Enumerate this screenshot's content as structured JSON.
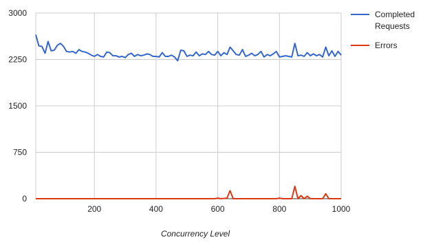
{
  "chart_data": {
    "type": "line",
    "title": "",
    "xlabel": "Concurrency Level",
    "ylabel": "",
    "xlim": [
      10,
      1000
    ],
    "ylim": [
      0,
      3000
    ],
    "x_ticks": [
      200,
      400,
      600,
      800,
      1000
    ],
    "y_ticks": [
      0,
      750,
      1500,
      2250,
      3000
    ],
    "grid": true,
    "legend_position": "right",
    "x": [
      10,
      20,
      30,
      40,
      50,
      60,
      70,
      80,
      90,
      100,
      110,
      120,
      130,
      140,
      150,
      160,
      170,
      180,
      190,
      200,
      210,
      220,
      230,
      240,
      250,
      260,
      270,
      280,
      290,
      300,
      310,
      320,
      330,
      340,
      350,
      360,
      370,
      380,
      390,
      400,
      410,
      420,
      430,
      440,
      450,
      460,
      470,
      480,
      490,
      500,
      510,
      520,
      530,
      540,
      550,
      560,
      570,
      580,
      590,
      600,
      610,
      620,
      630,
      640,
      650,
      660,
      670,
      680,
      690,
      700,
      710,
      720,
      730,
      740,
      750,
      760,
      770,
      780,
      790,
      800,
      810,
      820,
      830,
      840,
      850,
      860,
      870,
      880,
      890,
      900,
      910,
      920,
      930,
      940,
      950,
      960,
      970,
      980,
      990,
      1000
    ],
    "series": [
      {
        "name": "Completed Requests",
        "color": "#3366cc",
        "values": [
          2650,
          2470,
          2460,
          2350,
          2540,
          2390,
          2400,
          2480,
          2510,
          2460,
          2380,
          2370,
          2380,
          2350,
          2410,
          2380,
          2370,
          2350,
          2320,
          2300,
          2330,
          2300,
          2290,
          2370,
          2360,
          2310,
          2310,
          2290,
          2300,
          2280,
          2330,
          2350,
          2300,
          2330,
          2310,
          2320,
          2340,
          2330,
          2300,
          2300,
          2290,
          2360,
          2300,
          2300,
          2320,
          2290,
          2230,
          2400,
          2390,
          2300,
          2320,
          2310,
          2370,
          2310,
          2340,
          2330,
          2380,
          2330,
          2320,
          2380,
          2310,
          2360,
          2330,
          2450,
          2390,
          2330,
          2320,
          2410,
          2300,
          2320,
          2350,
          2310,
          2330,
          2380,
          2290,
          2330,
          2310,
          2340,
          2380,
          2290,
          2300,
          2310,
          2300,
          2290,
          2510,
          2310,
          2320,
          2300,
          2360,
          2310,
          2340,
          2310,
          2330,
          2290,
          2450,
          2310,
          2390,
          2300,
          2380,
          2320
        ]
      },
      {
        "name": "Errors",
        "color": "#dc3912",
        "values": [
          0,
          0,
          0,
          0,
          0,
          0,
          0,
          0,
          0,
          0,
          0,
          0,
          0,
          0,
          0,
          0,
          0,
          0,
          0,
          0,
          0,
          0,
          0,
          0,
          0,
          0,
          0,
          0,
          0,
          0,
          0,
          0,
          0,
          0,
          0,
          0,
          0,
          0,
          0,
          0,
          0,
          0,
          0,
          0,
          0,
          0,
          0,
          0,
          0,
          0,
          0,
          0,
          0,
          0,
          0,
          0,
          0,
          0,
          0,
          10,
          0,
          5,
          10,
          130,
          0,
          0,
          0,
          0,
          0,
          0,
          0,
          0,
          0,
          0,
          0,
          0,
          0,
          0,
          0,
          10,
          0,
          0,
          0,
          0,
          200,
          0,
          50,
          0,
          40,
          0,
          0,
          0,
          0,
          0,
          80,
          0,
          0,
          0,
          0,
          0
        ]
      }
    ]
  }
}
